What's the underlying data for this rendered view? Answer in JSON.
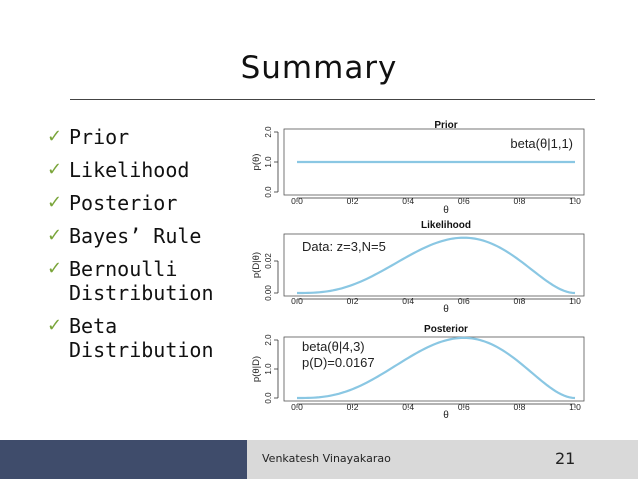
{
  "slide": {
    "title": "Summary",
    "bullets": [
      {
        "label": "Prior"
      },
      {
        "label": "Likelihood"
      },
      {
        "label": "Posterior"
      },
      {
        "label": "Bayes’ Rule"
      },
      {
        "label": "Bernoulli\nDistribution"
      },
      {
        "label": "Beta\nDistribution"
      }
    ],
    "check_icon": "check-icon",
    "footer": {
      "author": "Venkatesh Vinayakarao",
      "page": "21"
    },
    "colors": {
      "curve": "#8ac7e3",
      "check": "#7aa53a",
      "footer_band": "#d9d9d9",
      "footer_left": "#3f4c6b"
    }
  },
  "chart_data": [
    {
      "type": "line",
      "title": "Prior",
      "ylabel": "p(θ)",
      "xlabel": "θ",
      "annotations": [
        "beta(θ|1,1)"
      ],
      "xlim": [
        0,
        1
      ],
      "ylim": [
        0,
        2
      ],
      "xticks": [
        "0.0",
        "0.2",
        "0.4",
        "0.6",
        "0.8",
        "1.0"
      ],
      "yticks": [
        "0.0",
        "1.0",
        "2.0"
      ],
      "curve": "beta",
      "a": 1,
      "b": 1
    },
    {
      "type": "line",
      "title": "Likelihood",
      "ylabel": "p(D|θ)",
      "xlabel": "θ",
      "annotations": [
        "Data: z=3,N=5"
      ],
      "xlim": [
        0,
        1
      ],
      "ylim": [
        0,
        0.035
      ],
      "xticks": [
        "0.0",
        "0.2",
        "0.4",
        "0.6",
        "0.8",
        "1.0"
      ],
      "yticks": [
        "0.00",
        "0.02"
      ],
      "curve": "likelihood",
      "z": 3,
      "N": 5
    },
    {
      "type": "line",
      "title": "Posterior",
      "ylabel": "p(θ|D)",
      "xlabel": "θ",
      "annotations": [
        "beta(θ|4,3)",
        "p(D)=0.0167"
      ],
      "xlim": [
        0,
        1
      ],
      "ylim": [
        0,
        2
      ],
      "xticks": [
        "0.0",
        "0.2",
        "0.4",
        "0.6",
        "0.8",
        "1.0"
      ],
      "yticks": [
        "0.0",
        "1.0",
        "2.0"
      ],
      "curve": "beta",
      "a": 4,
      "b": 3
    }
  ]
}
